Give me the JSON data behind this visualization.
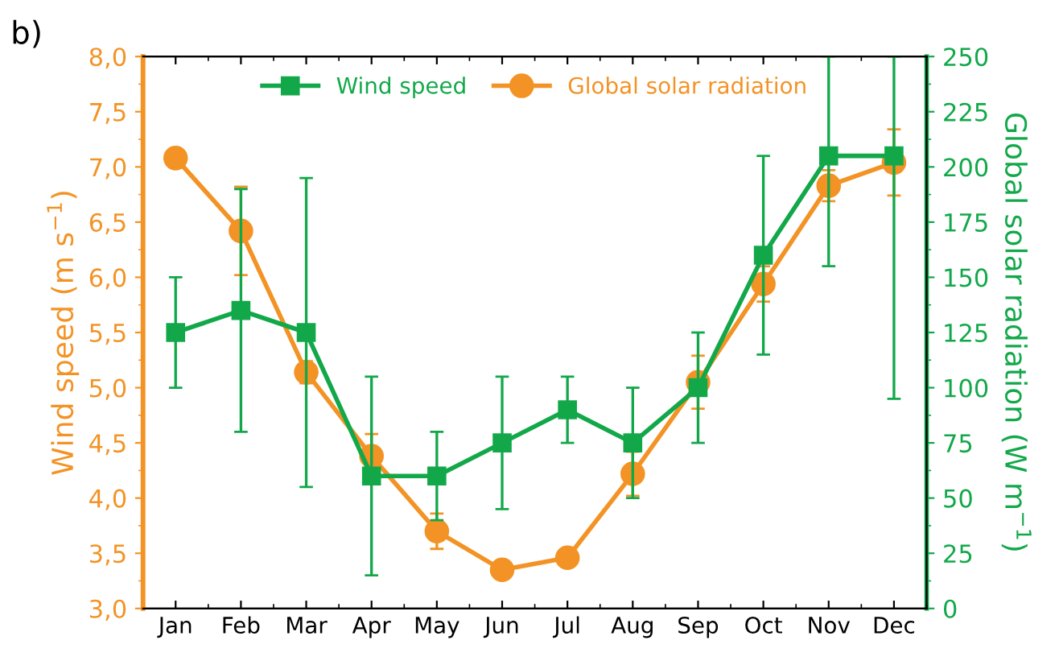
{
  "chart_data": {
    "type": "line",
    "categories": [
      "Jan",
      "Feb",
      "Mar",
      "Apr",
      "May",
      "Jun",
      "Jul",
      "Aug",
      "Sep",
      "Oct",
      "Nov",
      "Dec"
    ],
    "ylabel": "Wind speed (m s$^{−1}$)",
    "y2label": "Global solar radiation (W m$^{−1}$)",
    "annotations": [
      "b)"
    ],
    "series": [
      {
        "name": "Wind speed",
        "color": "#12a84a",
        "marker": "square",
        "values": [
          5.5,
          5.7,
          5.5,
          4.2,
          4.2,
          4.5,
          4.8,
          4.5,
          5.0,
          6.2,
          7.1,
          7.1
        ],
        "errors": [
          0.5,
          1.1,
          1.4,
          0.9,
          0.4,
          0.6,
          0.3,
          0.5,
          0.5,
          0.9,
          [
            6.1,
            8.0
          ],
          [
            4.9,
            8.0
          ]
        ]
      },
      {
        "name": "Global solar radiation",
        "color": "#f39325",
        "marker": "circle",
        "axis": "y2",
        "values": [
          204,
          171,
          107,
          69,
          35,
          17.5,
          23,
          61,
          102.5,
          147,
          191.5,
          202
        ],
        "errors": [
          4,
          20,
          5,
          10,
          8,
          3,
          2,
          10,
          12,
          8,
          7,
          15
        ]
      }
    ],
    "ylim": [
      3.0,
      8.0
    ],
    "yticks": [
      {
        "value": 3.0,
        "label": "3,0"
      },
      {
        "value": 3.5,
        "label": "3,5"
      },
      {
        "value": 4.0,
        "label": "4,0"
      },
      {
        "value": 4.5,
        "label": "4,5"
      },
      {
        "value": 5.0,
        "label": "5,0"
      },
      {
        "value": 5.5,
        "label": "5,5"
      },
      {
        "value": 6.0,
        "label": "6,0"
      },
      {
        "value": 6.5,
        "label": "6,5"
      },
      {
        "value": 7.0,
        "label": "7,0"
      },
      {
        "value": 7.5,
        "label": "7,5"
      },
      {
        "value": 8.0,
        "label": "8,0"
      }
    ],
    "y2lim": [
      0,
      250
    ],
    "y2ticks": [
      0,
      25,
      50,
      75,
      100,
      125,
      150,
      175,
      200,
      225,
      250
    ],
    "legend": "top",
    "grid": false,
    "line_style": "solid"
  }
}
